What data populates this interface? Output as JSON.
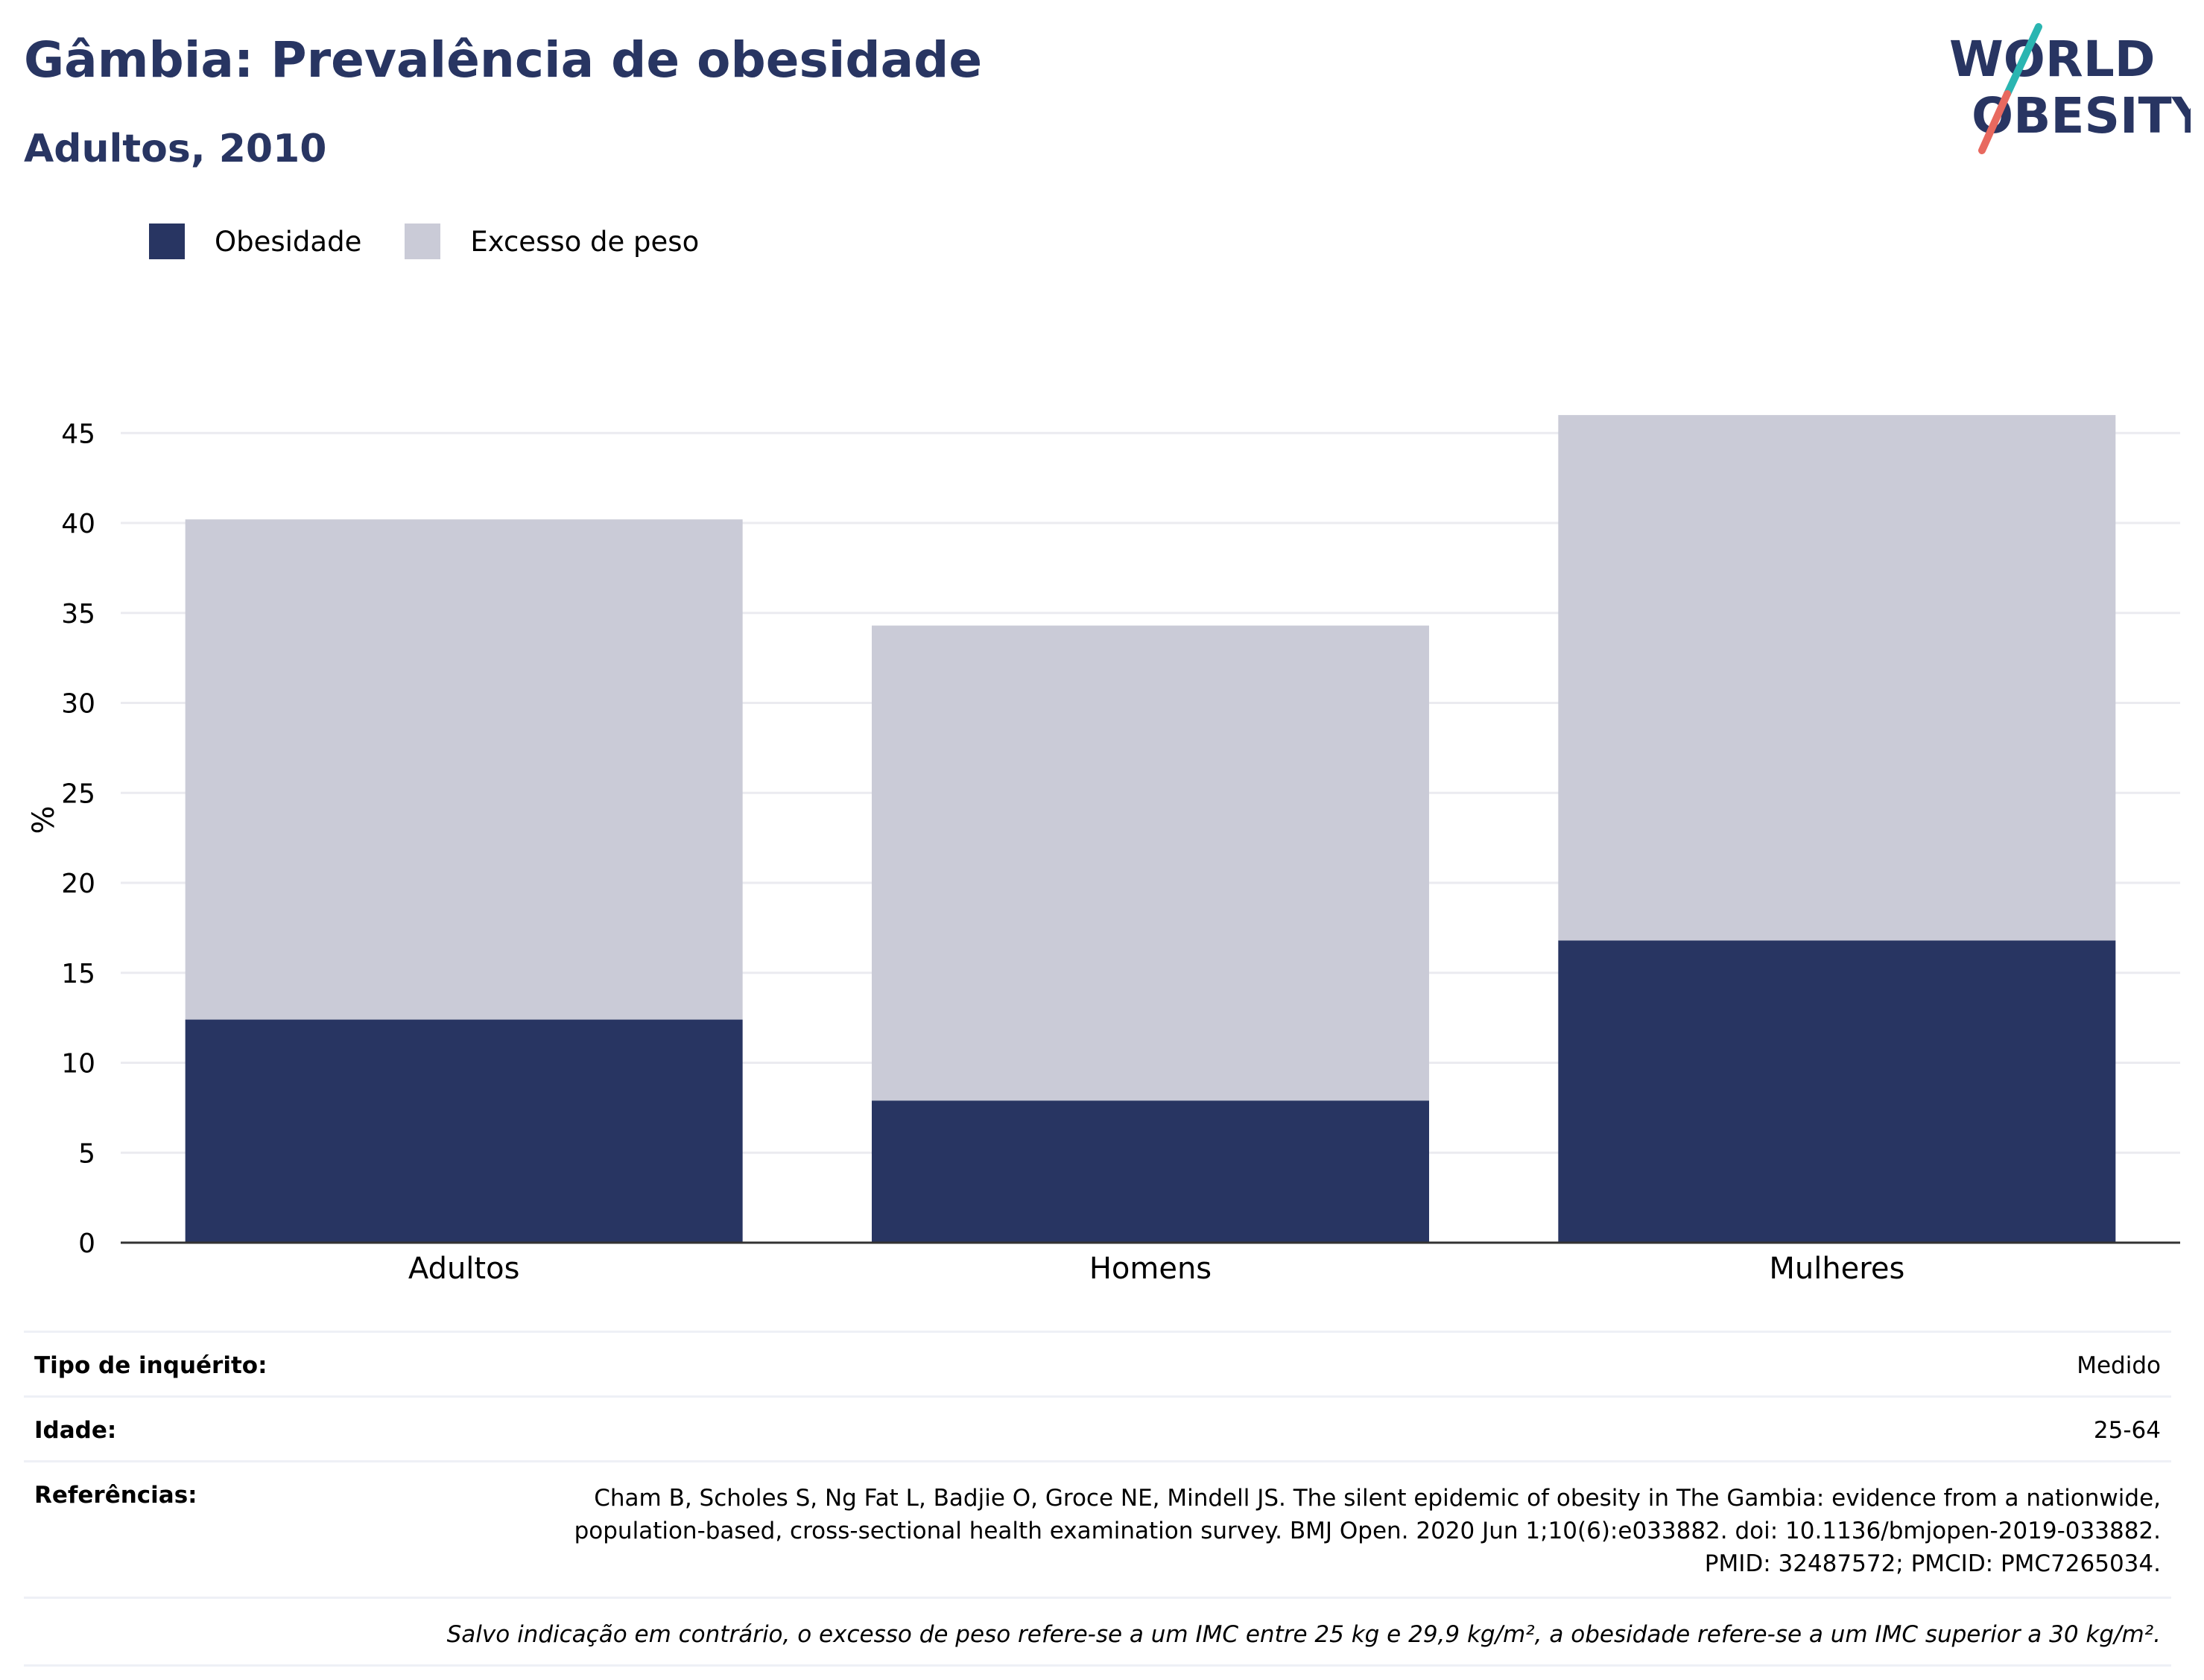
{
  "header": {
    "title": "Gâmbia: Prevalência de obesidade",
    "subtitle": "Adultos, 2010"
  },
  "logo": {
    "line1": "WORLD",
    "line2": "OBESITY",
    "colors": {
      "text": "#283562",
      "slash_top": "#2ab5b1",
      "slash_bottom": "#e8695f"
    }
  },
  "legend": [
    {
      "label": "Obesidade",
      "color": "#283562"
    },
    {
      "label": "Excesso de peso",
      "color": "#cacbd7"
    }
  ],
  "chart_data": {
    "type": "bar",
    "stacked": true,
    "categories": [
      "Adultos",
      "Homens",
      "Mulheres"
    ],
    "series": [
      {
        "name": "Obesidade",
        "values": [
          12.4,
          7.9,
          16.8
        ],
        "color": "#283562"
      },
      {
        "name": "Excesso de peso",
        "values": [
          27.8,
          26.4,
          29.2
        ],
        "color": "#cacbd7"
      }
    ],
    "ylabel": "%",
    "xlabel": "",
    "ylim": [
      0,
      47
    ],
    "yticks": [
      0,
      5,
      10,
      15,
      20,
      25,
      30,
      35,
      40,
      45
    ],
    "grid": true,
    "legend_position": "top-left"
  },
  "info": {
    "survey_type_label": "Tipo de inquérito:",
    "survey_type_value": "Medido",
    "age_label": "Idade:",
    "age_value": "25-64",
    "references_label": "Referências:",
    "references_value": "Cham B, Scholes S, Ng Fat L, Badjie O, Groce NE, Mindell JS. The silent epidemic of obesity in The Gambia: evidence from a nationwide, population-based, cross-sectional health examination survey. BMJ Open. 2020 Jun 1;10(6):e033882. doi: 10.1136/bmjopen-2019-033882. PMID: 32487572; PMCID: PMC7265034.",
    "note": "Salvo indicação em contrário, o excesso de peso refere-se a um IMC entre 25 kg e 29,9 kg/m², a obesidade refere-se a um IMC superior a 30 kg/m²."
  }
}
